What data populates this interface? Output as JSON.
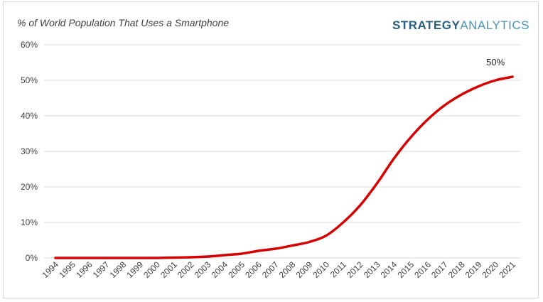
{
  "chart_data": {
    "type": "line",
    "title": "% of World Population That Uses a Smartphone",
    "brand": {
      "part1": "STRATEGY",
      "part2": "ANALYTICS"
    },
    "x": [
      "1994",
      "1995",
      "1996",
      "1997",
      "1998",
      "1999",
      "2000",
      "2001",
      "2002",
      "2003",
      "2004",
      "2005",
      "2006",
      "2007",
      "2008",
      "2009",
      "2010",
      "2011",
      "2012",
      "2013",
      "2014",
      "2015",
      "2016",
      "2017",
      "2018",
      "2019",
      "2020",
      "2021"
    ],
    "series": [
      {
        "values": [
          0.0,
          0.0,
          0.0,
          0.0,
          0.0,
          0.0,
          0.0,
          0.1,
          0.2,
          0.4,
          0.8,
          1.2,
          2.0,
          2.6,
          3.5,
          4.5,
          6.3,
          10.0,
          14.8,
          21.0,
          28.0,
          34.0,
          39.0,
          43.0,
          46.0,
          48.3,
          50.0,
          51.0
        ],
        "color": "#d60000"
      }
    ],
    "ylim": [
      0,
      60
    ],
    "yticks": [
      0,
      10,
      20,
      30,
      40,
      50,
      60
    ],
    "ytick_labels": [
      "0%",
      "10%",
      "20%",
      "30%",
      "40%",
      "50%",
      "60%"
    ],
    "grid": true,
    "annotation": {
      "text": "50%",
      "x": "2020"
    }
  }
}
